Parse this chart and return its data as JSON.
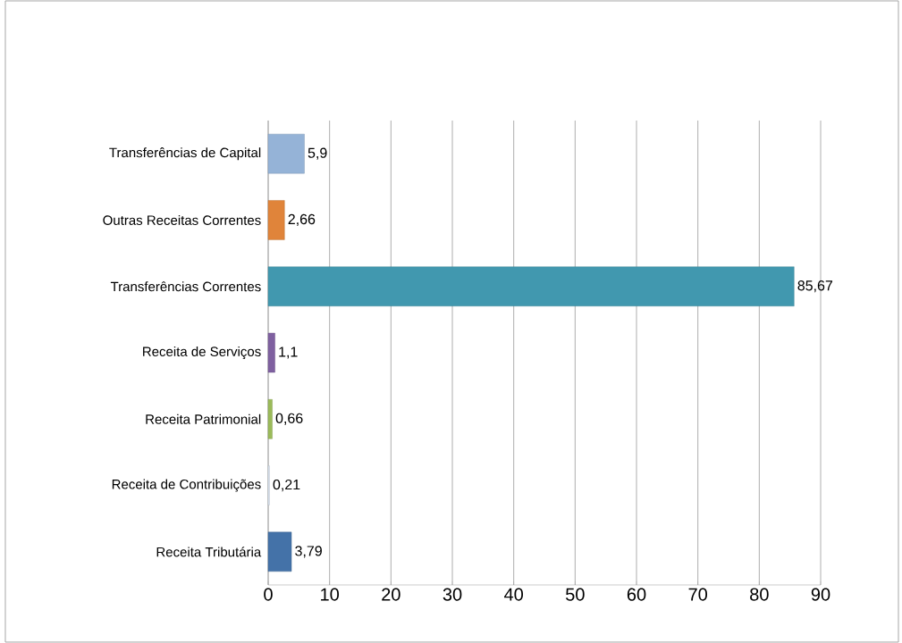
{
  "chart_data": {
    "type": "bar",
    "orientation": "horizontal",
    "categories": [
      "Transferências de Capital",
      "Outras Receitas Correntes",
      "Transferências Correntes",
      "Receita de Serviços",
      "Receita Patrimonial",
      "Receita de Contribuições",
      "Receita Tributária"
    ],
    "values": [
      5.9,
      2.66,
      85.67,
      1.1,
      0.66,
      0.21,
      3.79
    ],
    "value_labels": [
      "5,9",
      "2,66",
      "85,67",
      "1,1",
      "0,66",
      "0,21",
      "3,79"
    ],
    "colors": [
      "#95b3d7",
      "#e0843a",
      "#4198af",
      "#7f60a0",
      "#9bbb59",
      "#dbe5f1",
      "#4472a8"
    ],
    "xlim": [
      0,
      90
    ],
    "xticks": [
      0,
      10,
      20,
      30,
      40,
      50,
      60,
      70,
      80,
      90
    ],
    "grid": "x"
  }
}
